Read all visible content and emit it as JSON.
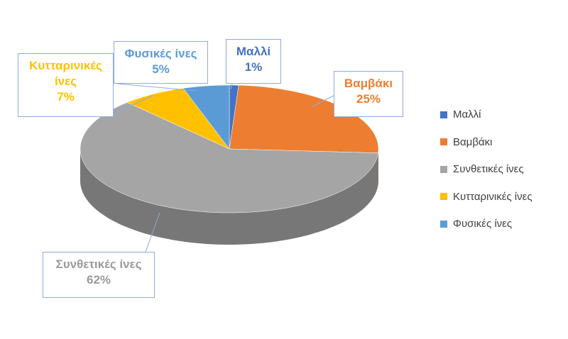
{
  "chart_data": {
    "type": "pie",
    "categories": [
      "Μαλλί",
      "Βαμβάκι",
      "Συνθετικές ίνες",
      "Κυτταρινικές ίνες",
      "Φυσικές ίνες"
    ],
    "values": [
      1,
      25,
      62,
      7,
      5
    ],
    "value_labels": [
      "1%",
      "25%",
      "62%",
      "7%",
      "5%"
    ],
    "colors": [
      "#4472c4",
      "#ed7d31",
      "#a5a5a5",
      "#ffc000",
      "#5b9bd5"
    ],
    "legend": "right"
  }
}
